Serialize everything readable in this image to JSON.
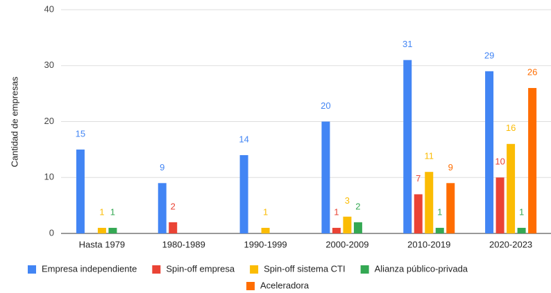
{
  "chart_data": {
    "type": "bar",
    "y_label": "Cantidad de empresas",
    "categories": [
      "Hasta 1979",
      "1980-1989",
      "1990-1999",
      "2000-2009",
      "2010-2019",
      "2020-2023"
    ],
    "series": [
      {
        "name": "Empresa independiente",
        "color": "#4285f4",
        "values": [
          15,
          9,
          14,
          20,
          31,
          29
        ]
      },
      {
        "name": "Spin-off empresa",
        "color": "#ea4335",
        "values": [
          null,
          2,
          null,
          1,
          7,
          10
        ]
      },
      {
        "name": "Spin-off sistema CTI",
        "color": "#fbbc04",
        "values": [
          1,
          null,
          1,
          3,
          11,
          16
        ]
      },
      {
        "name": "Alianza público-privada",
        "color": "#34a853",
        "values": [
          1,
          null,
          null,
          2,
          1,
          1
        ]
      },
      {
        "name": "Aceleradora",
        "color": "#ff6d01",
        "values": [
          null,
          null,
          null,
          null,
          9,
          26
        ]
      }
    ],
    "ylim": [
      0,
      40
    ],
    "yticks": [
      0,
      10,
      20,
      30,
      40
    ],
    "grid": true
  }
}
